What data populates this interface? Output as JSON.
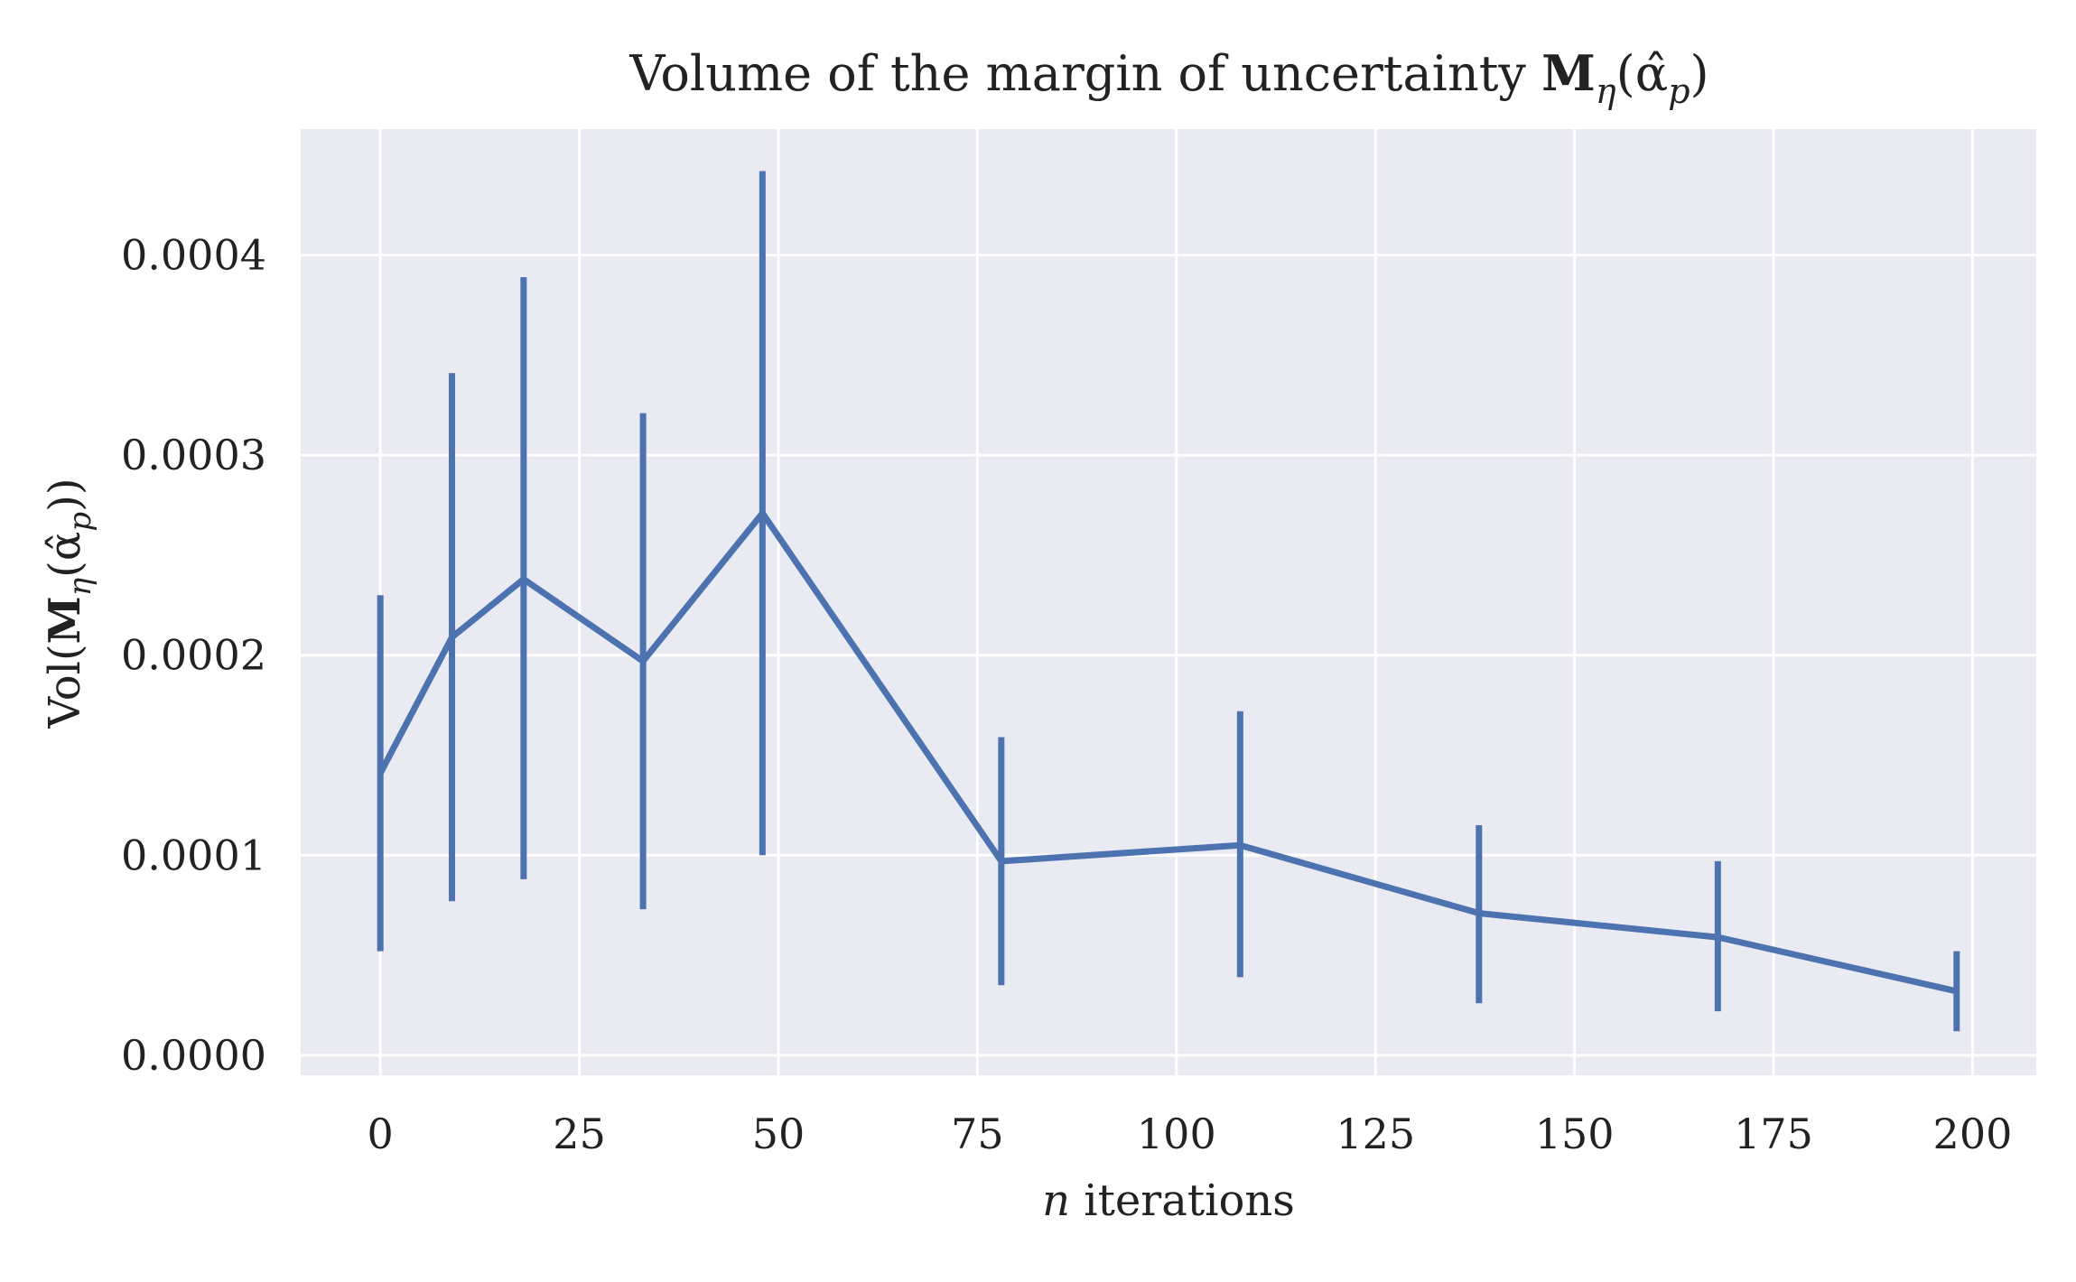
{
  "chart_data": {
    "type": "line",
    "title": {
      "prefix": "Volume of the margin of uncertainty ",
      "symbol": "M",
      "subscript": "η",
      "argument": "(α̂",
      "argument_subscript": "p",
      "close": ")"
    },
    "xlabel": {
      "variable": "n",
      "text": " iterations"
    },
    "ylabel": {
      "prefix": "Vol(",
      "symbol": "M",
      "subscript": "η",
      "argument": "(α̂",
      "argument_subscript": "p",
      "close": "))"
    },
    "xlim": [
      -10,
      208
    ],
    "ylim": [
      -1e-05,
      0.000463
    ],
    "xticks": [
      0,
      25,
      50,
      75,
      100,
      125,
      150,
      175,
      200
    ],
    "xtick_labels": [
      "0",
      "25",
      "50",
      "75",
      "100",
      "125",
      "150",
      "175",
      "200"
    ],
    "yticks": [
      0,
      0.0001,
      0.0002,
      0.0003,
      0.0004
    ],
    "ytick_labels": [
      "0.0000",
      "0.0001",
      "0.0002",
      "0.0003",
      "0.0004"
    ],
    "grid": true,
    "background": "#eaeaf2",
    "grid_color": "#ffffff",
    "line_color": "#4c72b0",
    "series": [
      {
        "x": [
          0,
          9,
          18,
          33,
          48,
          78,
          108,
          138,
          168,
          198
        ],
        "y": [
          0.000141,
          0.000209,
          0.000238,
          0.000197,
          0.000271,
          9.7e-05,
          0.000105,
          7.1e-05,
          5.9e-05,
          3.2e-05
        ],
        "yerr_low": [
          5.2e-05,
          7.7e-05,
          8.8e-05,
          7.3e-05,
          0.0001,
          3.5e-05,
          3.9e-05,
          2.6e-05,
          2.2e-05,
          1.2e-05
        ],
        "yerr_high": [
          0.00023,
          0.000341,
          0.000389,
          0.000321,
          0.000442,
          0.000159,
          0.000172,
          0.000115,
          9.7e-05,
          5.2e-05
        ]
      }
    ]
  }
}
